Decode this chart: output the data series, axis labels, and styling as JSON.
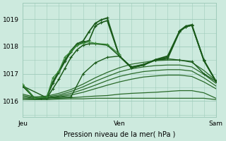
{
  "xlabel": "Pression niveau de la mer( hPa )",
  "bg_color": "#cdeade",
  "grid_color": "#a0ccbb",
  "ylim": [
    1015.4,
    1019.6
  ],
  "yticks": [
    1016,
    1017,
    1018,
    1019
  ],
  "xtick_labels": [
    "Jeu",
    "Ven",
    "Sam"
  ],
  "xtick_positions": [
    0,
    16,
    32
  ],
  "xlim": [
    0,
    32
  ],
  "vlines": [
    16,
    32
  ],
  "series": [
    {
      "x": [
        0,
        2,
        4,
        6,
        8,
        10,
        12,
        14,
        16,
        18,
        20,
        22,
        24,
        26,
        28,
        30,
        32
      ],
      "y": [
        1016.05,
        1016.05,
        1016.05,
        1016.07,
        1016.08,
        1016.08,
        1016.1,
        1016.1,
        1016.1,
        1016.1,
        1016.1,
        1016.1,
        1016.1,
        1016.1,
        1016.1,
        1016.1,
        1016.05
      ],
      "color": "#2a6a2a",
      "lw": 0.9,
      "marker": null
    },
    {
      "x": [
        0,
        2,
        4,
        6,
        8,
        10,
        12,
        14,
        16,
        18,
        20,
        22,
        24,
        26,
        28,
        30,
        32
      ],
      "y": [
        1016.1,
        1016.08,
        1016.08,
        1016.1,
        1016.12,
        1016.15,
        1016.18,
        1016.2,
        1016.25,
        1016.28,
        1016.3,
        1016.32,
        1016.35,
        1016.38,
        1016.38,
        1016.3,
        1016.1
      ],
      "color": "#2a6a2a",
      "lw": 0.9,
      "marker": null
    },
    {
      "x": [
        0,
        2,
        4,
        6,
        8,
        10,
        12,
        14,
        16,
        18,
        20,
        22,
        24,
        26,
        28,
        30,
        32
      ],
      "y": [
        1016.1,
        1016.08,
        1016.1,
        1016.15,
        1016.22,
        1016.32,
        1016.45,
        1016.58,
        1016.7,
        1016.8,
        1016.88,
        1016.92,
        1016.95,
        1016.95,
        1016.9,
        1016.7,
        1016.45
      ],
      "color": "#2a6a2a",
      "lw": 0.9,
      "marker": null
    },
    {
      "x": [
        0,
        2,
        4,
        6,
        8,
        10,
        12,
        14,
        16,
        18,
        20,
        22,
        24,
        26,
        28,
        30,
        32
      ],
      "y": [
        1016.15,
        1016.1,
        1016.12,
        1016.18,
        1016.28,
        1016.42,
        1016.58,
        1016.75,
        1016.9,
        1017.0,
        1017.08,
        1017.12,
        1017.15,
        1017.15,
        1017.1,
        1016.85,
        1016.55
      ],
      "color": "#2a6a2a",
      "lw": 0.9,
      "marker": null
    },
    {
      "x": [
        0,
        2,
        4,
        6,
        8,
        10,
        12,
        14,
        16,
        18,
        20,
        22,
        24,
        26,
        28,
        30,
        32
      ],
      "y": [
        1016.2,
        1016.12,
        1016.15,
        1016.22,
        1016.35,
        1016.52,
        1016.72,
        1016.9,
        1017.07,
        1017.18,
        1017.25,
        1017.3,
        1017.32,
        1017.32,
        1017.25,
        1016.98,
        1016.65
      ],
      "color": "#2a6a2a",
      "lw": 0.9,
      "marker": null
    },
    {
      "x": [
        0,
        2,
        4,
        6,
        8,
        10,
        12,
        14,
        16,
        18,
        20,
        22,
        24,
        26,
        28,
        30,
        32
      ],
      "y": [
        1016.25,
        1016.15,
        1016.18,
        1016.28,
        1016.42,
        1016.62,
        1016.85,
        1017.05,
        1017.22,
        1017.35,
        1017.42,
        1017.48,
        1017.5,
        1017.5,
        1017.42,
        1017.12,
        1016.75
      ],
      "color": "#2a6a2a",
      "lw": 0.9,
      "marker": null
    },
    {
      "x": [
        0,
        4,
        8,
        10,
        12,
        14,
        16,
        18,
        20,
        22,
        24,
        26,
        28,
        30,
        32
      ],
      "y": [
        1016.55,
        1016.12,
        1016.15,
        1017.0,
        1017.4,
        1017.6,
        1017.65,
        1017.25,
        1017.35,
        1017.5,
        1017.55,
        1017.5,
        1017.45,
        1017.0,
        1016.72
      ],
      "color": "#1a5a1a",
      "lw": 1.0,
      "marker": "+"
    },
    {
      "x": [
        0,
        2,
        3,
        4,
        5,
        6,
        7,
        8,
        9,
        10,
        11,
        12,
        14,
        16,
        18,
        20,
        22,
        24,
        26,
        27,
        28,
        30,
        32
      ],
      "y": [
        1016.55,
        1016.1,
        1016.1,
        1016.1,
        1016.45,
        1016.8,
        1017.2,
        1017.6,
        1017.88,
        1018.05,
        1018.1,
        1018.1,
        1018.05,
        1017.65,
        1017.25,
        1017.32,
        1017.5,
        1017.55,
        1018.55,
        1018.72,
        1018.78,
        1017.48,
        1016.72
      ],
      "color": "#1a5a1a",
      "lw": 1.1,
      "marker": "+"
    },
    {
      "x": [
        0,
        2,
        3,
        4,
        5,
        6,
        7,
        8,
        9,
        10,
        11,
        12,
        13,
        14,
        16,
        18,
        20,
        22,
        24,
        26,
        27,
        28,
        30,
        32
      ],
      "y": [
        1016.55,
        1016.1,
        1016.1,
        1016.15,
        1016.65,
        1017.05,
        1017.45,
        1017.8,
        1018.05,
        1018.15,
        1018.22,
        1018.75,
        1018.88,
        1018.95,
        1017.65,
        1017.22,
        1017.32,
        1017.52,
        1017.6,
        1018.58,
        1018.72,
        1018.78,
        1017.48,
        1016.72
      ],
      "color": "#1a5a1a",
      "lw": 1.2,
      "marker": "+"
    },
    {
      "x": [
        0,
        2,
        3,
        4,
        5,
        6,
        7,
        8,
        9,
        10,
        11,
        12,
        13,
        14,
        16,
        18,
        20,
        22,
        24,
        26,
        27,
        28,
        30,
        32
      ],
      "y": [
        1016.6,
        1016.1,
        1016.1,
        1016.15,
        1016.7,
        1017.1,
        1017.5,
        1017.85,
        1018.1,
        1018.2,
        1018.55,
        1018.85,
        1018.98,
        1019.05,
        1017.65,
        1017.22,
        1017.32,
        1017.52,
        1017.65,
        1018.58,
        1018.75,
        1018.8,
        1017.5,
        1016.72
      ],
      "color": "#1a5a1a",
      "lw": 1.3,
      "marker": "+"
    },
    {
      "x": [
        0,
        2,
        4,
        5,
        6,
        7,
        8,
        9,
        10,
        11,
        12,
        14,
        16
      ],
      "y": [
        1016.6,
        1016.1,
        1016.15,
        1016.85,
        1017.1,
        1017.62,
        1017.82,
        1018.05,
        1018.12,
        1018.17,
        1018.12,
        1018.08,
        1017.72
      ],
      "color": "#3a8a3a",
      "lw": 0.9,
      "marker": "+"
    }
  ]
}
